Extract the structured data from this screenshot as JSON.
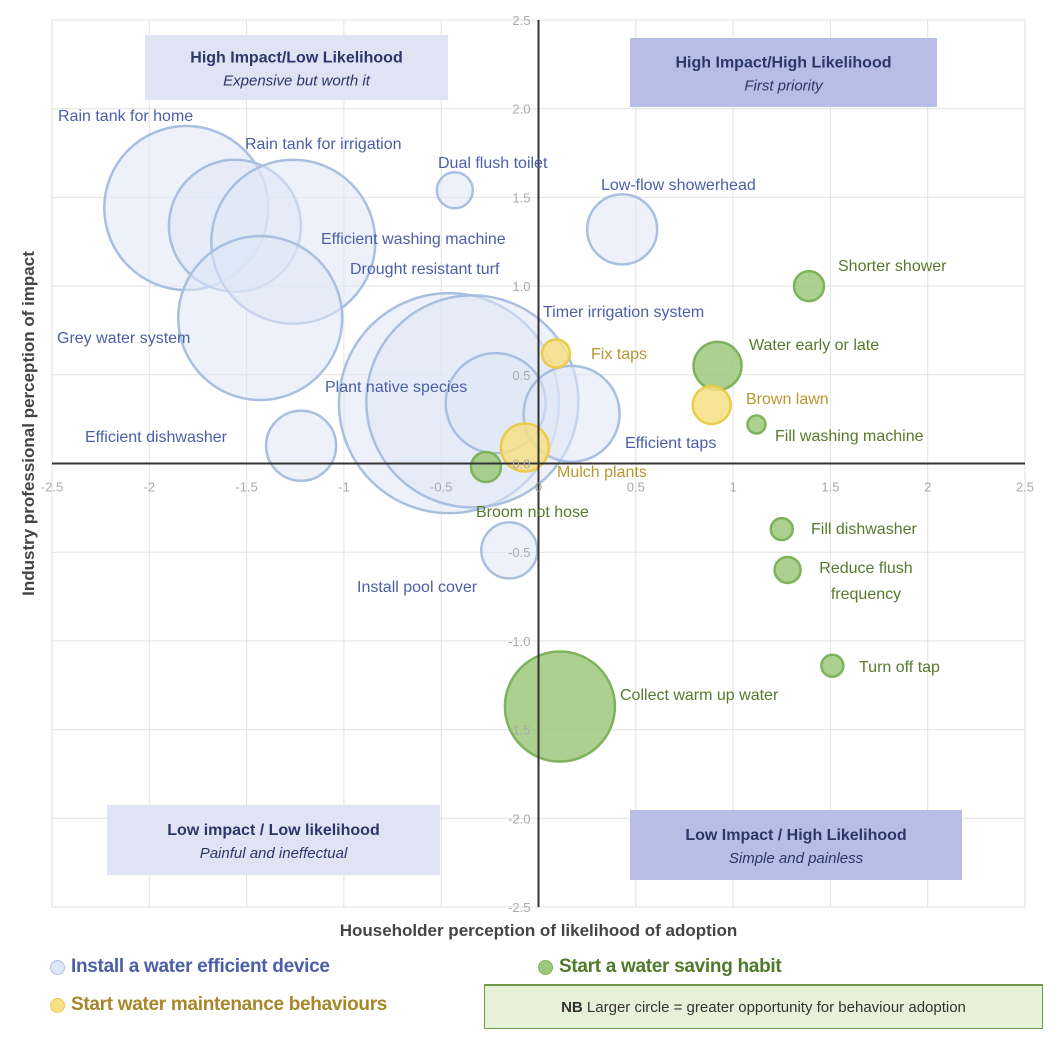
{
  "chart_data": {
    "type": "bubble",
    "xlabel": "Householder perception of likelihood of adoption",
    "ylabel": "Industry professional perception of impact",
    "xlim": [
      -2.5,
      2.5
    ],
    "ylim": [
      -2.5,
      2.5
    ],
    "xticks": [
      "-2.5",
      "-2",
      "-1.5",
      "-1",
      "-0.5",
      "0",
      "0.5",
      "1",
      "1.5",
      "2",
      "2.5"
    ],
    "yticks": [
      "-2.5",
      "-2.0",
      "-1.5",
      "-1.0",
      "-0.5",
      "0.0",
      "0.5",
      "1.0",
      "1.5",
      "2.0",
      "2.5"
    ],
    "grid": true,
    "quadrants": [
      {
        "title": "High Impact/Low Likelihood",
        "subtitle": "Expensive but worth it"
      },
      {
        "title": "High Impact/High Likelihood",
        "subtitle": "First priority"
      },
      {
        "title": "Low impact / Low likelihood",
        "subtitle": "Painful and ineffectual"
      },
      {
        "title": "Low Impact / High Likelihood",
        "subtitle": "Simple and painless"
      }
    ],
    "series": [
      {
        "name": "Install a water efficient device",
        "color": "#a9bfe0",
        "fill": "#dfe7f5",
        "label_color": "#4a5fa8",
        "points": [
          {
            "label": "Rain tank for home",
            "x": -1.81,
            "y": 1.44,
            "size": 8.2
          },
          {
            "label": "Rain tank for irrigation",
            "x": -1.56,
            "y": 1.34,
            "size": 6.6
          },
          {
            "label": "Efficient washing machine",
            "x": -1.26,
            "y": 1.25,
            "size": 8.2
          },
          {
            "label": "Grey water system",
            "x": -1.43,
            "y": 0.82,
            "size": 8.2
          },
          {
            "label": "Dual flush toilet",
            "x": -0.43,
            "y": 1.54,
            "size": 1.8
          },
          {
            "label": "Low-flow showerhead",
            "x": 0.43,
            "y": 1.32,
            "size": 3.5
          },
          {
            "label": "Drought resistant turf",
            "x": -0.46,
            "y": 0.34,
            "size": 11
          },
          {
            "label": "Timer irrigation system",
            "x": -0.34,
            "y": 0.35,
            "size": 10.6
          },
          {
            "label": "Plant native species",
            "x": -0.22,
            "y": 0.34,
            "size": 5.0
          },
          {
            "label": "Efficient taps",
            "x": 0.17,
            "y": 0.28,
            "size": 4.8
          },
          {
            "label": "Efficient dishwasher",
            "x": -1.22,
            "y": 0.1,
            "size": 3.5
          },
          {
            "label": "Install pool cover",
            "x": -0.15,
            "y": -0.49,
            "size": 2.8
          }
        ]
      },
      {
        "name": "Start a water saving habit",
        "color": "#7db35a",
        "fill": "#9cc87b",
        "label_color": "#56792b",
        "points": [
          {
            "label": "Shorter shower",
            "x": 1.39,
            "y": 1.0,
            "size": 1.5
          },
          {
            "label": "Water early or late",
            "x": 0.92,
            "y": 0.55,
            "size": 2.4
          },
          {
            "label": "Fill washing machine",
            "x": 1.12,
            "y": 0.22,
            "size": 0.9
          },
          {
            "label": "Broom not hose",
            "x": -0.27,
            "y": -0.02,
            "size": 1.5
          },
          {
            "label": "Fill dishwasher",
            "x": 1.25,
            "y": -0.37,
            "size": 1.1
          },
          {
            "label": "Reduce flush frequency",
            "x": 1.28,
            "y": -0.6,
            "size": 1.3
          },
          {
            "label": "Turn off tap",
            "x": 1.51,
            "y": -1.14,
            "size": 1.1
          },
          {
            "label": "Collect warm up water",
            "x": 0.11,
            "y": -1.37,
            "size": 5.5
          }
        ]
      },
      {
        "name": "Start water maintenance behaviours",
        "color": "#eccb4b",
        "fill": "#f6df85",
        "label_color": "#b8962e",
        "points": [
          {
            "label": "Fix taps",
            "x": 0.09,
            "y": 0.62,
            "size": 1.4
          },
          {
            "label": "Brown lawn",
            "x": 0.89,
            "y": 0.33,
            "size": 1.9
          },
          {
            "label": "Mulch plants",
            "x": -0.07,
            "y": 0.09,
            "size": 2.4
          }
        ]
      }
    ],
    "note": {
      "bold": "NB",
      "text": "Larger circle = greater opportunity for behaviour adoption"
    }
  }
}
